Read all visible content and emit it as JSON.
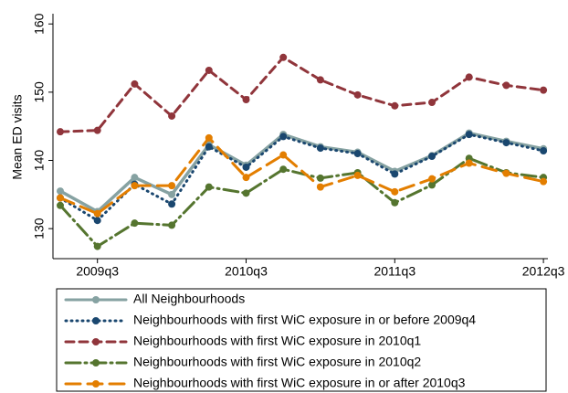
{
  "chart_data": {
    "type": "line",
    "y_label": "Mean ED visits",
    "categories": [
      null,
      "2009q3",
      null,
      null,
      null,
      "2010q3",
      null,
      null,
      null,
      "2011q3",
      null,
      null,
      null,
      "2012q3"
    ],
    "ylim": [
      125.6,
      161.5
    ],
    "yticks": [
      130,
      140,
      150,
      160
    ],
    "grid": false,
    "legend": "bottom",
    "series": [
      {
        "name": "All Neighbourhoods",
        "color": "#86a2a2",
        "dash": "solid",
        "values": [
          135.5,
          132.5,
          137.5,
          135,
          142.3,
          139.3,
          143.8,
          142,
          141.2,
          138.4,
          140.7,
          144,
          142.8,
          141.7
        ]
      },
      {
        "name": "Neighbourhoods with first WiC exposure in or before 2009q4",
        "color": "#1a476f",
        "dash": "dot",
        "values": [
          134.5,
          131.2,
          136.5,
          133.6,
          142,
          139,
          143.5,
          141.8,
          141,
          138,
          140.6,
          143.8,
          142.6,
          141.4
        ]
      },
      {
        "name": "Neighbourhoods with first WiC exposure in 2010q1",
        "color": "#90353b",
        "dash": "dash",
        "values": [
          144.2,
          144.4,
          151.2,
          146.5,
          153.2,
          148.9,
          155.1,
          151.8,
          149.6,
          148,
          148.5,
          152.2,
          151,
          150.3
        ]
      },
      {
        "name": "Neighbourhoods with first WiC exposure in 2010q2",
        "color": "#55752f",
        "dash": "longdashdot",
        "values": [
          133.4,
          127.4,
          130.8,
          130.5,
          136.1,
          135.2,
          138.7,
          137.4,
          138.2,
          133.8,
          136.4,
          140.3,
          138.2,
          137.5
        ]
      },
      {
        "name": "Neighbourhoods with first WiC exposure in or after 2010q3",
        "color": "#e37e00",
        "dash": "longdash",
        "values": [
          134.5,
          132.2,
          136.3,
          136.3,
          143.3,
          137.5,
          140.8,
          136.1,
          137.8,
          135.4,
          137.3,
          139.6,
          138.1,
          136.9
        ]
      }
    ]
  }
}
